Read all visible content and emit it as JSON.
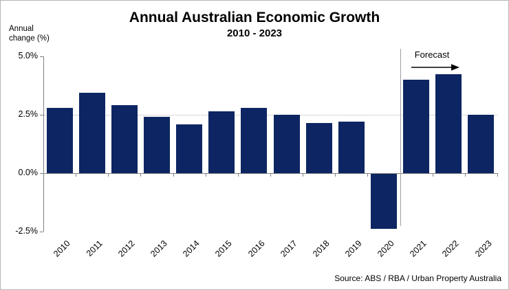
{
  "header": {
    "title": "Annual Australian Economic Growth",
    "subtitle": "2010 - 2023"
  },
  "y_axis_title_display": "Annual\nchange (%)",
  "source": "Source: ABS / RBA / Urban Property Australia",
  "colors": {
    "bar": "#0d2562",
    "axis": "#808080",
    "gridline": "#b0b0b0",
    "separator": "#9e9e9e",
    "text": "#000000",
    "background": "#ffffff"
  },
  "chart_data": {
    "type": "bar",
    "title": "Annual Australian Economic Growth",
    "subtitle": "2010 - 2023",
    "ylabel": "Annual change (%)",
    "categories": [
      "2010",
      "2011",
      "2012",
      "2013",
      "2014",
      "2015",
      "2016",
      "2017",
      "2018",
      "2019",
      "2020",
      "2021",
      "2022",
      "2023"
    ],
    "values": [
      2.8,
      3.45,
      2.9,
      2.4,
      2.1,
      2.65,
      2.8,
      2.5,
      2.15,
      2.2,
      -2.35,
      4.0,
      4.25,
      2.5
    ],
    "ylim": [
      -2.5,
      5.0
    ],
    "ytick_labels": [
      "5.0%",
      "2.5%",
      "0.0%",
      "-2.5%"
    ],
    "ytick_values": [
      5.0,
      2.5,
      0.0,
      -2.5
    ],
    "gridlines_at": [
      2.5
    ],
    "grid": "single dotted horizontal gridline at 2.5%",
    "legend_position": "none",
    "annotation": "Forecast",
    "forecast_separator_after": "2020",
    "forecast_categories": [
      "2021",
      "2022",
      "2023"
    ],
    "source": "Source: ABS / RBA / Urban Property Australia"
  }
}
